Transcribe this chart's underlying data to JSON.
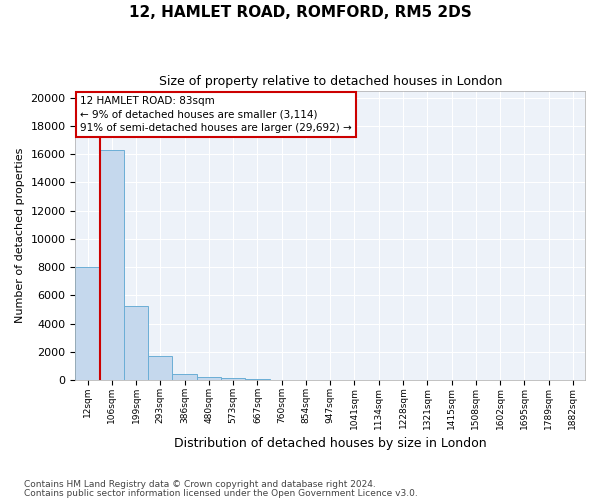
{
  "title1": "12, HAMLET ROAD, ROMFORD, RM5 2DS",
  "title2": "Size of property relative to detached houses in London",
  "xlabel": "Distribution of detached houses by size in London",
  "ylabel": "Number of detached properties",
  "footnote1": "Contains HM Land Registry data © Crown copyright and database right 2024.",
  "footnote2": "Contains public sector information licensed under the Open Government Licence v3.0.",
  "annotation_title": "12 HAMLET ROAD: 83sqm",
  "annotation_line1": "← 9% of detached houses are smaller (3,114)",
  "annotation_line2": "91% of semi-detached houses are larger (29,692) →",
  "bar_color": "#c5d8ed",
  "bar_edge_color": "#6baed6",
  "annotation_box_color": "#cc0000",
  "vline_color": "#cc0000",
  "categories": [
    "12sqm",
    "106sqm",
    "199sqm",
    "293sqm",
    "386sqm",
    "480sqm",
    "573sqm",
    "667sqm",
    "760sqm",
    "854sqm",
    "947sqm",
    "1041sqm",
    "1134sqm",
    "1228sqm",
    "1321sqm",
    "1415sqm",
    "1508sqm",
    "1602sqm",
    "1695sqm",
    "1789sqm",
    "1882sqm"
  ],
  "values": [
    8050,
    16300,
    5250,
    1750,
    480,
    210,
    130,
    75,
    50,
    30,
    22,
    14,
    10,
    8,
    6,
    5,
    4,
    3,
    2,
    2,
    1
  ],
  "ylim": [
    0,
    20500
  ],
  "yticks": [
    0,
    2000,
    4000,
    6000,
    8000,
    10000,
    12000,
    14000,
    16000,
    18000,
    20000
  ],
  "bg_color": "#edf2f9",
  "vline_x": 0.5
}
